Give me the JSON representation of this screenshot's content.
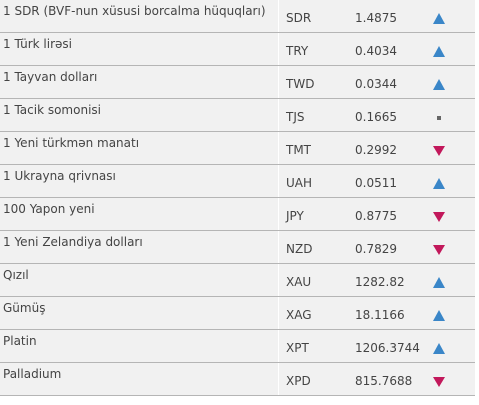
{
  "table": {
    "rows": [
      {
        "name": "1 SDR (BVF-nun xüsusi borcalma hüquqları)",
        "code": "SDR",
        "rate": "1.4875",
        "trend": "up"
      },
      {
        "name": "1 Türk lirəsi",
        "code": "TRY",
        "rate": "0.4034",
        "trend": "up"
      },
      {
        "name": "1 Tayvan dolları",
        "code": "TWD",
        "rate": "0.0344",
        "trend": "up"
      },
      {
        "name": "1 Tacik somonisi",
        "code": "TJS",
        "rate": "0.1665",
        "trend": "flat"
      },
      {
        "name": "1 Yeni türkmən manatı",
        "code": "TMT",
        "rate": "0.2992",
        "trend": "down"
      },
      {
        "name": "1 Ukrayna qrivnası",
        "code": "UAH",
        "rate": "0.0511",
        "trend": "up"
      },
      {
        "name": "100 Yapon yeni",
        "code": "JPY",
        "rate": "0.8775",
        "trend": "down"
      },
      {
        "name": "1 Yeni Zelandiya dolları",
        "code": "NZD",
        "rate": "0.7829",
        "trend": "down"
      },
      {
        "name": "Qızıl",
        "code": "XAU",
        "rate": "1282.82",
        "trend": "up"
      },
      {
        "name": "Gümüş",
        "code": "XAG",
        "rate": "18.1166",
        "trend": "up"
      },
      {
        "name": "Platin",
        "code": "XPT",
        "rate": "1206.3744",
        "trend": "up"
      },
      {
        "name": "Palladium",
        "code": "XPD",
        "rate": "815.7688",
        "trend": "down"
      }
    ],
    "colors": {
      "up": "#3a86c8",
      "down": "#c2185b",
      "flat": "#666666"
    }
  }
}
